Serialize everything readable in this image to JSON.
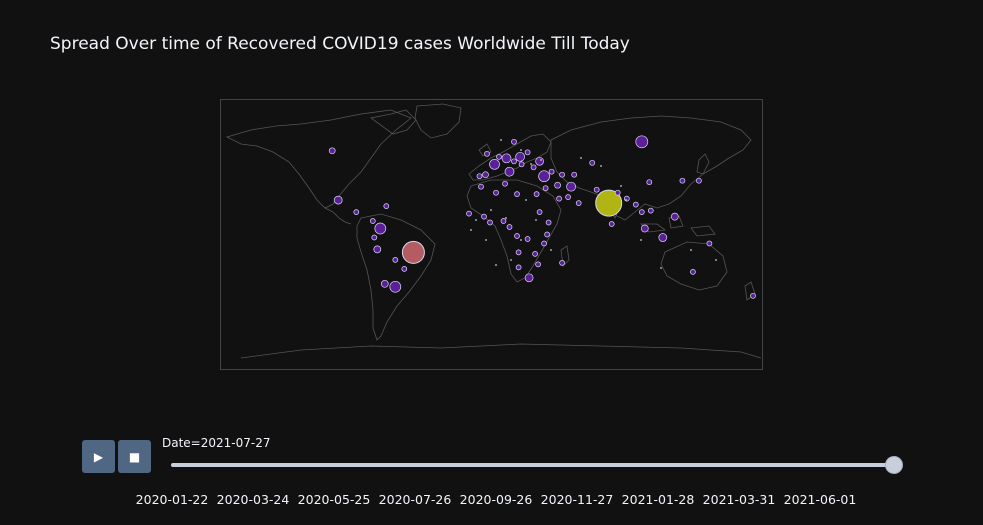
{
  "title": "Spread Over time of Recovered COVID19 cases Worldwide Till Today",
  "slider": {
    "label_prefix": "Date=",
    "current_value": "2021-07-27",
    "current_label": "Date=2021-07-27",
    "position_fraction": 1.0,
    "ticks": [
      "2020-01-22",
      "2020-03-24",
      "2020-05-25",
      "2020-07-26",
      "2020-09-26",
      "2020-11-27",
      "2021-01-28",
      "2021-03-31",
      "2021-06-01"
    ]
  },
  "controls": {
    "play_icon": "play-icon",
    "stop_icon": "stop-icon",
    "play_glyph": "▶",
    "stop_glyph": "■"
  },
  "colors": {
    "background": "#111111",
    "button": "#506784",
    "slider": "#c8cfdc",
    "low_recovered": "#5b1f9a",
    "mid_recovered": "#b55c63",
    "high_recovered": "#b0b514",
    "land_outline": "#555555"
  },
  "chart_data": {
    "type": "scatter_geo",
    "title": "Spread Over time of Recovered COVID19 cases Worldwide Till Today",
    "frame": "2021-07-27",
    "projection": "equirectangular",
    "points": [
      {
        "lon": 78,
        "lat": 21,
        "size": 13,
        "color": "#b0b514"
      },
      {
        "lon": -52,
        "lat": -12,
        "size": 11,
        "color": "#b55c63"
      },
      {
        "lon": 100,
        "lat": 62,
        "size": 6,
        "color": "#5b1f9a"
      },
      {
        "lon": 35,
        "lat": 39,
        "size": 5.5,
        "color": "#5b1f9a"
      },
      {
        "lon": -74,
        "lat": 4,
        "size": 5.5,
        "color": "#5b1f9a"
      },
      {
        "lon": -64,
        "lat": -35,
        "size": 5.5,
        "color": "#5b1f9a"
      },
      {
        "lon": 2,
        "lat": 47,
        "size": 5,
        "color": "#5b1f9a"
      },
      {
        "lon": 12,
        "lat": 42,
        "size": 4.5,
        "color": "#5b1f9a"
      },
      {
        "lon": 10,
        "lat": 51,
        "size": 4.5,
        "color": "#5b1f9a"
      },
      {
        "lon": 19,
        "lat": 52,
        "size": 4.5,
        "color": "#5b1f9a"
      },
      {
        "lon": 53,
        "lat": 32,
        "size": 4.5,
        "color": "#5b1f9a"
      },
      {
        "lon": -102,
        "lat": 23,
        "size": 4,
        "color": "#5b1f9a"
      },
      {
        "lon": 32,
        "lat": 49,
        "size": 4,
        "color": "#5b1f9a"
      },
      {
        "lon": 25,
        "lat": -29,
        "size": 4,
        "color": "#5b1f9a"
      },
      {
        "lon": 114,
        "lat": -2,
        "size": 4,
        "color": "#5b1f9a"
      },
      {
        "lon": 122,
        "lat": 12,
        "size": 3.5,
        "color": "#5b1f9a"
      },
      {
        "lon": -76,
        "lat": -10,
        "size": 3.5,
        "color": "#5b1f9a"
      },
      {
        "lon": -71,
        "lat": -33,
        "size": 3.5,
        "color": "#5b1f9a"
      },
      {
        "lon": 102,
        "lat": 4,
        "size": 3.5,
        "color": "#5b1f9a"
      },
      {
        "lon": -106,
        "lat": 56,
        "size": 3,
        "color": "#5b1f9a"
      },
      {
        "lon": 44,
        "lat": 33,
        "size": 3,
        "color": "#5b1f9a"
      },
      {
        "lon": -4,
        "lat": 40,
        "size": 3,
        "color": "#5b1f9a"
      },
      {
        "lon": 67,
        "lat": 48,
        "size": 2.5,
        "color": "#5b1f9a"
      },
      {
        "lon": 30,
        "lat": 27,
        "size": 2.5,
        "color": "#5b1f9a"
      },
      {
        "lon": 45,
        "lat": 24,
        "size": 2.5,
        "color": "#5b1f9a"
      },
      {
        "lon": 70,
        "lat": 30,
        "size": 2.5,
        "color": "#5b1f9a"
      },
      {
        "lon": 90,
        "lat": 24,
        "size": 2.5,
        "color": "#5b1f9a"
      },
      {
        "lon": -8,
        "lat": 39,
        "size": 2.5,
        "color": "#5b1f9a"
      },
      {
        "lon": 28,
        "lat": 45,
        "size": 2.5,
        "color": "#5b1f9a"
      },
      {
        "lon": 20,
        "lat": 47,
        "size": 2.5,
        "color": "#5b1f9a"
      },
      {
        "lon": 15,
        "lat": 49,
        "size": 2.5,
        "color": "#5b1f9a"
      },
      {
        "lon": -70,
        "lat": 19,
        "size": 2.5,
        "color": "#5b1f9a"
      },
      {
        "lon": -79,
        "lat": 9,
        "size": 2.5,
        "color": "#5b1f9a"
      },
      {
        "lon": -90,
        "lat": 15,
        "size": 2.5,
        "color": "#5b1f9a"
      },
      {
        "lon": -58,
        "lat": -23,
        "size": 2.5,
        "color": "#5b1f9a"
      },
      {
        "lon": -64,
        "lat": -17,
        "size": 2.5,
        "color": "#5b1f9a"
      },
      {
        "lon": -78,
        "lat": -2,
        "size": 2.5,
        "color": "#5b1f9a"
      },
      {
        "lon": 36,
        "lat": 31,
        "size": 2.5,
        "color": "#5b1f9a"
      },
      {
        "lon": 51,
        "lat": 25,
        "size": 2.5,
        "color": "#5b1f9a"
      },
      {
        "lon": 58,
        "lat": 21,
        "size": 2.5,
        "color": "#5b1f9a"
      },
      {
        "lon": 55,
        "lat": 40,
        "size": 2.5,
        "color": "#5b1f9a"
      },
      {
        "lon": 47,
        "lat": 40,
        "size": 2.5,
        "color": "#5b1f9a"
      },
      {
        "lon": 40,
        "lat": 42,
        "size": 2.5,
        "color": "#5b1f9a"
      },
      {
        "lon": 24,
        "lat": 55,
        "size": 2.5,
        "color": "#5b1f9a"
      },
      {
        "lon": 15,
        "lat": 62,
        "size": 2.5,
        "color": "#5b1f9a"
      },
      {
        "lon": 5,
        "lat": 52,
        "size": 2.5,
        "color": "#5b1f9a"
      },
      {
        "lon": -3,
        "lat": 54,
        "size": 2.5,
        "color": "#5b1f9a"
      },
      {
        "lon": 3,
        "lat": 28,
        "size": 2.5,
        "color": "#5b1f9a"
      },
      {
        "lon": -7,
        "lat": 32,
        "size": 2.5,
        "color": "#5b1f9a"
      },
      {
        "lon": 9,
        "lat": 34,
        "size": 2.5,
        "color": "#5b1f9a"
      },
      {
        "lon": 17,
        "lat": 27,
        "size": 2.5,
        "color": "#5b1f9a"
      },
      {
        "lon": 138,
        "lat": 36,
        "size": 2.5,
        "color": "#5b1f9a"
      },
      {
        "lon": 127,
        "lat": 36,
        "size": 2.5,
        "color": "#5b1f9a"
      },
      {
        "lon": 105,
        "lat": 35,
        "size": 2.5,
        "color": "#5b1f9a"
      },
      {
        "lon": 84,
        "lat": 28,
        "size": 2.5,
        "color": "#5b1f9a"
      },
      {
        "lon": 80,
        "lat": 7,
        "size": 2.5,
        "color": "#5b1f9a"
      },
      {
        "lon": 100,
        "lat": 15,
        "size": 2.5,
        "color": "#5b1f9a"
      },
      {
        "lon": 106,
        "lat": 16,
        "size": 2.5,
        "color": "#5b1f9a"
      },
      {
        "lon": 96,
        "lat": 20,
        "size": 2.5,
        "color": "#5b1f9a"
      },
      {
        "lon": 8,
        "lat": 9,
        "size": 2.5,
        "color": "#5b1f9a"
      },
      {
        "lon": 38,
        "lat": 8,
        "size": 2.5,
        "color": "#5b1f9a"
      },
      {
        "lon": 37,
        "lat": 0,
        "size": 2.5,
        "color": "#5b1f9a"
      },
      {
        "lon": 29,
        "lat": -13,
        "size": 2.5,
        "color": "#5b1f9a"
      },
      {
        "lon": 47,
        "lat": -19,
        "size": 2.5,
        "color": "#5b1f9a"
      },
      {
        "lon": 32,
        "lat": 15,
        "size": 2.5,
        "color": "#5b1f9a"
      },
      {
        "lon": -1,
        "lat": 8,
        "size": 2.5,
        "color": "#5b1f9a"
      },
      {
        "lon": 12,
        "lat": 5,
        "size": 2.5,
        "color": "#5b1f9a"
      },
      {
        "lon": 17,
        "lat": -1,
        "size": 2.5,
        "color": "#5b1f9a"
      },
      {
        "lon": 24,
        "lat": -3,
        "size": 2.5,
        "color": "#5b1f9a"
      },
      {
        "lon": 18,
        "lat": -12,
        "size": 2.5,
        "color": "#5b1f9a"
      },
      {
        "lon": 35,
        "lat": -6,
        "size": 2.5,
        "color": "#5b1f9a"
      },
      {
        "lon": 31,
        "lat": -20,
        "size": 2.5,
        "color": "#5b1f9a"
      },
      {
        "lon": 18,
        "lat": -22,
        "size": 2.5,
        "color": "#5b1f9a"
      },
      {
        "lon": -15,
        "lat": 14,
        "size": 2.5,
        "color": "#5b1f9a"
      },
      {
        "lon": -5,
        "lat": 12,
        "size": 2.5,
        "color": "#5b1f9a"
      },
      {
        "lon": 134,
        "lat": -25,
        "size": 2.5,
        "color": "#5b1f9a"
      },
      {
        "lon": 174,
        "lat": -41,
        "size": 2.5,
        "color": "#5b1f9a"
      },
      {
        "lon": 145,
        "lat": -6,
        "size": 2.5,
        "color": "#5b1f9a"
      }
    ]
  }
}
